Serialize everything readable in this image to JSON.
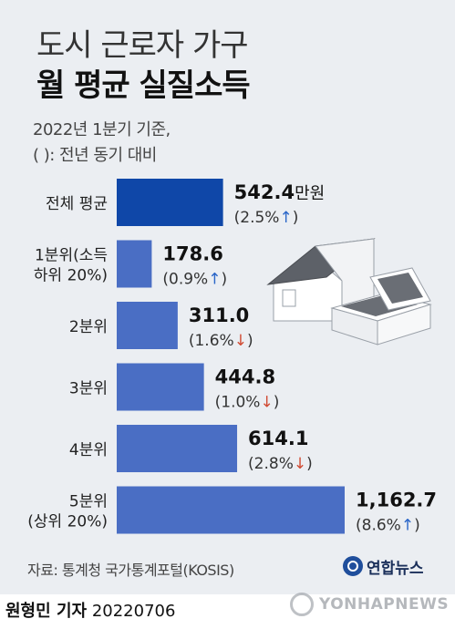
{
  "header": {
    "title_line1": "도시 근로자 가구",
    "title_line2": "월 평균 실질소득",
    "subtitle_line1": "2022년 1분기 기준,",
    "subtitle_line2": "( ): 전년 동기 대비"
  },
  "chart_data": {
    "type": "bar",
    "orientation": "horizontal",
    "unit": "만원",
    "categories": [
      "전체 평균",
      "1분위(소득 하위 20%)",
      "2분위",
      "3분위",
      "4분위",
      "5분위(상위 20%)"
    ],
    "category_lines": [
      [
        "전체 평균"
      ],
      [
        "1분위(소득",
        "하위 20%)"
      ],
      [
        "2분위"
      ],
      [
        "3분위"
      ],
      [
        "4분위"
      ],
      [
        "5분위",
        "(상위 20%)"
      ]
    ],
    "values": [
      542.4,
      178.6,
      311.0,
      444.8,
      614.1,
      1162.7
    ],
    "value_labels": [
      "542.4",
      "178.6",
      "311.0",
      "444.8",
      "614.1",
      "1,162.7"
    ],
    "unit_label_index": 0,
    "changes": [
      "2.5%",
      "0.9%",
      "1.6%",
      "1.0%",
      "2.8%",
      "8.6%"
    ],
    "change_direction": [
      "up",
      "up",
      "down",
      "down",
      "down",
      "up"
    ],
    "highlight_index": 0,
    "colors": {
      "highlight": "#0f47a8",
      "bar": "#4a6ec4",
      "up": "#2a66c8",
      "down": "#d04a32"
    }
  },
  "footer": {
    "source": "자료: 통계청 국가통계포털(KOSIS)",
    "logo_text": "연합뉴스",
    "byline_name": "원형민 기자",
    "byline_date": "20220706",
    "watermark_text": "YONHAPNEWS"
  },
  "illustration": {
    "icon": "house-with-cash-icon"
  }
}
